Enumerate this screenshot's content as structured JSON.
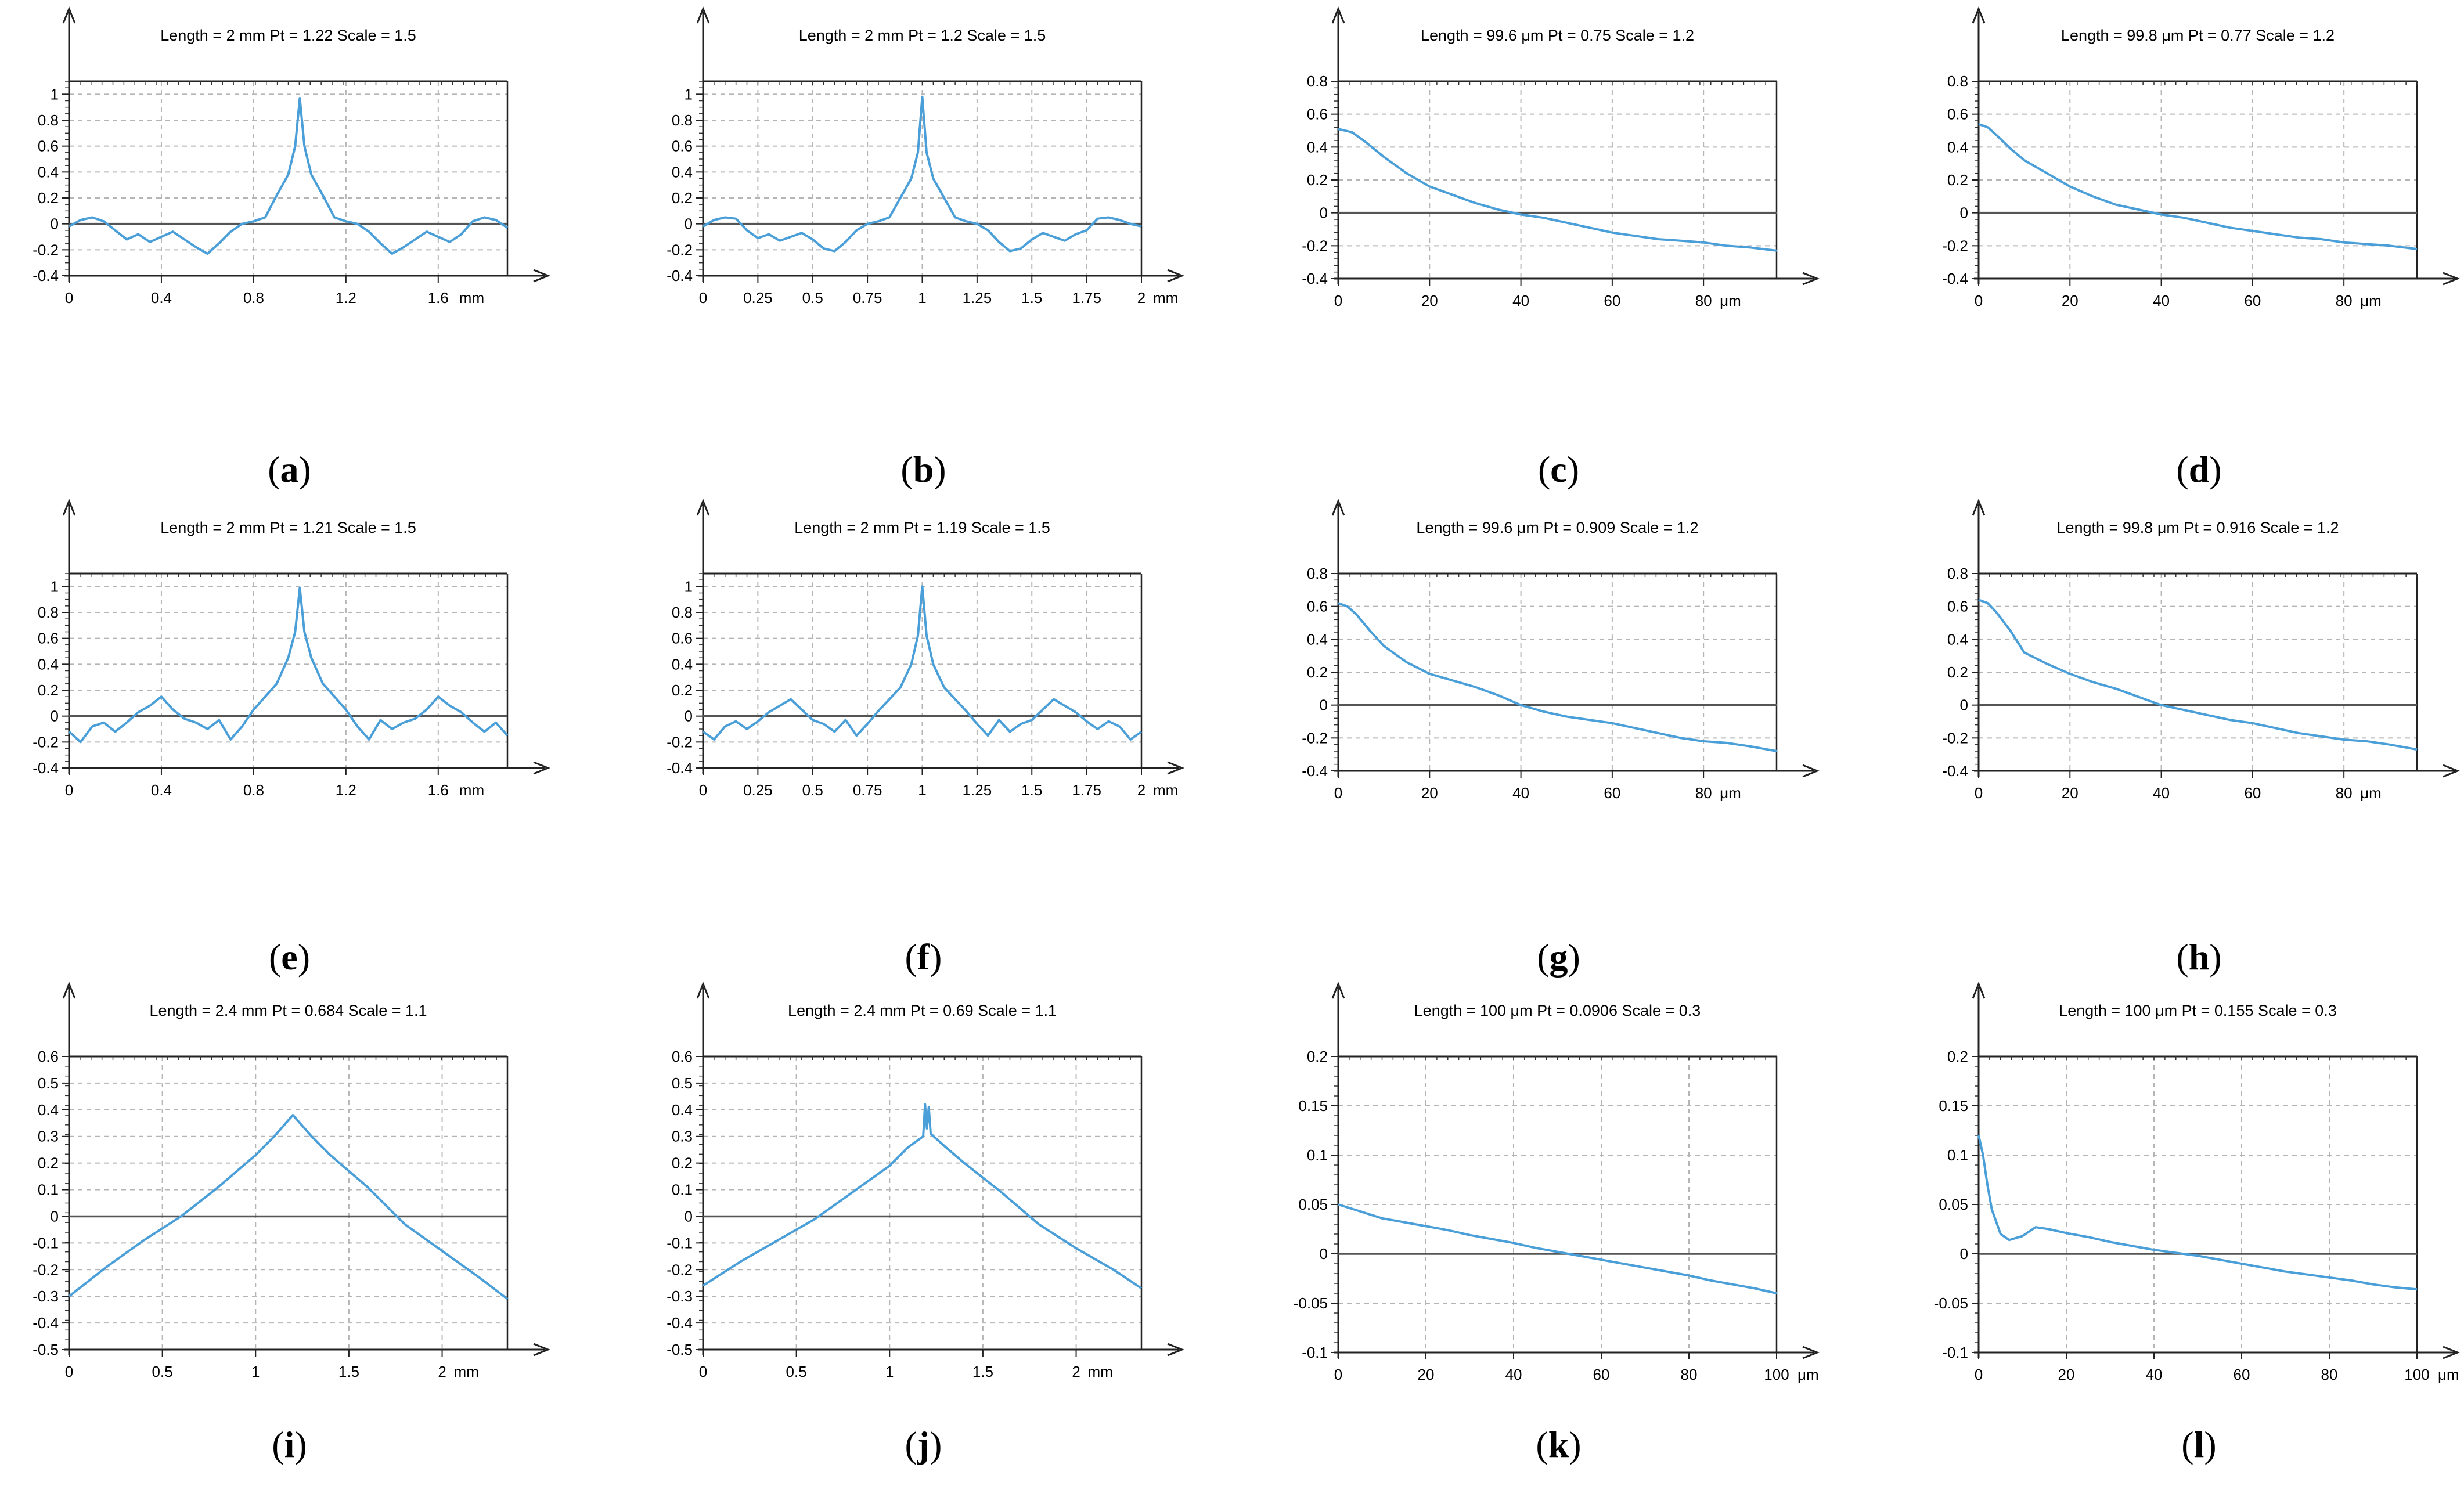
{
  "figure": {
    "panel_count": 12
  },
  "chart_data": [
    {
      "caption": "a",
      "type": "line",
      "header": "Length = 2 mm  Pt = 1.22    Scale = 1.5",
      "shape": "peak",
      "unit": "mm",
      "xlim": [
        0,
        1.9
      ],
      "ylim": [
        -0.4,
        1.1
      ],
      "xticks": [
        0,
        0.4,
        0.8,
        1.2,
        1.6
      ],
      "yticks": [
        -0.4,
        -0.2,
        0,
        0.2,
        0.4,
        0.6,
        0.8,
        1
      ],
      "series": [
        {
          "name": "profile",
          "x": [
            0,
            0.05,
            0.1,
            0.15,
            0.2,
            0.25,
            0.3,
            0.35,
            0.4,
            0.45,
            0.5,
            0.55,
            0.6,
            0.65,
            0.7,
            0.75,
            0.8,
            0.85,
            0.9,
            0.95,
            0.98,
            1.0,
            1.02,
            1.05,
            1.1,
            1.15,
            1.2,
            1.25,
            1.3,
            1.35,
            1.4,
            1.45,
            1.5,
            1.55,
            1.6,
            1.65,
            1.7,
            1.75,
            1.8,
            1.85,
            1.9
          ],
          "y": [
            -0.02,
            0.03,
            0.05,
            0.02,
            -0.05,
            -0.12,
            -0.08,
            -0.14,
            -0.1,
            -0.06,
            -0.12,
            -0.18,
            -0.23,
            -0.15,
            -0.06,
            0.0,
            0.02,
            0.05,
            0.22,
            0.38,
            0.6,
            0.97,
            0.6,
            0.38,
            0.22,
            0.05,
            0.02,
            0.0,
            -0.06,
            -0.15,
            -0.23,
            -0.18,
            -0.12,
            -0.06,
            -0.1,
            -0.14,
            -0.08,
            0.02,
            0.05,
            0.03,
            -0.03
          ]
        }
      ]
    },
    {
      "caption": "b",
      "type": "line",
      "header": "Length = 2 mm  Pt = 1.2    Scale = 1.5",
      "shape": "peak",
      "unit": "mm",
      "xlim": [
        0,
        2.0
      ],
      "ylim": [
        -0.4,
        1.1
      ],
      "xticks": [
        0,
        0.25,
        0.5,
        0.75,
        1,
        1.25,
        1.5,
        1.75,
        2
      ],
      "yticks": [
        -0.4,
        -0.2,
        0,
        0.2,
        0.4,
        0.6,
        0.8,
        1
      ],
      "series": [
        {
          "name": "profile",
          "x": [
            0,
            0.05,
            0.1,
            0.15,
            0.2,
            0.25,
            0.3,
            0.35,
            0.4,
            0.45,
            0.5,
            0.55,
            0.6,
            0.65,
            0.7,
            0.75,
            0.8,
            0.85,
            0.9,
            0.95,
            0.98,
            1.0,
            1.02,
            1.05,
            1.1,
            1.15,
            1.2,
            1.25,
            1.3,
            1.35,
            1.4,
            1.45,
            1.5,
            1.55,
            1.6,
            1.65,
            1.7,
            1.75,
            1.8,
            1.85,
            1.9,
            1.95,
            2.0
          ],
          "y": [
            -0.02,
            0.03,
            0.05,
            0.04,
            -0.05,
            -0.11,
            -0.08,
            -0.13,
            -0.1,
            -0.07,
            -0.12,
            -0.19,
            -0.21,
            -0.14,
            -0.05,
            0.0,
            0.02,
            0.05,
            0.2,
            0.35,
            0.55,
            0.98,
            0.55,
            0.35,
            0.2,
            0.05,
            0.02,
            0.0,
            -0.05,
            -0.14,
            -0.21,
            -0.19,
            -0.12,
            -0.07,
            -0.1,
            -0.13,
            -0.08,
            -0.05,
            0.04,
            0.05,
            0.03,
            0.0,
            -0.02
          ]
        }
      ]
    },
    {
      "caption": "c",
      "type": "line",
      "header": "Length = 99.6 μm  Pt = 0.75    Scale = 1.2",
      "shape": "decay",
      "unit": "μm",
      "xlim": [
        0,
        96
      ],
      "ylim": [
        -0.4,
        0.8
      ],
      "xticks": [
        0,
        20,
        40,
        60,
        80
      ],
      "yticks": [
        -0.4,
        -0.2,
        0,
        0.2,
        0.4,
        0.6,
        0.8
      ],
      "series": [
        {
          "name": "profile",
          "x": [
            0,
            3,
            6,
            10,
            15,
            20,
            25,
            30,
            35,
            40,
            45,
            50,
            55,
            60,
            65,
            70,
            75,
            80,
            85,
            90,
            96
          ],
          "y": [
            0.51,
            0.49,
            0.43,
            0.34,
            0.24,
            0.16,
            0.11,
            0.06,
            0.02,
            -0.01,
            -0.03,
            -0.06,
            -0.09,
            -0.12,
            -0.14,
            -0.16,
            -0.17,
            -0.18,
            -0.2,
            -0.21,
            -0.23
          ]
        }
      ]
    },
    {
      "caption": "d",
      "type": "line",
      "header": "Length = 99.8 μm  Pt = 0.77    Scale = 1.2",
      "shape": "decay",
      "unit": "μm",
      "xlim": [
        0,
        96
      ],
      "ylim": [
        -0.4,
        0.8
      ],
      "xticks": [
        0,
        20,
        40,
        60,
        80
      ],
      "yticks": [
        -0.4,
        -0.2,
        0,
        0.2,
        0.4,
        0.6,
        0.8
      ],
      "series": [
        {
          "name": "profile",
          "x": [
            0,
            2,
            4,
            7,
            10,
            15,
            20,
            25,
            30,
            35,
            40,
            45,
            50,
            55,
            60,
            65,
            70,
            75,
            80,
            85,
            90,
            96
          ],
          "y": [
            0.54,
            0.52,
            0.47,
            0.39,
            0.32,
            0.24,
            0.16,
            0.1,
            0.05,
            0.02,
            -0.01,
            -0.03,
            -0.06,
            -0.09,
            -0.11,
            -0.13,
            -0.15,
            -0.16,
            -0.18,
            -0.19,
            -0.2,
            -0.22
          ]
        }
      ]
    },
    {
      "caption": "e",
      "type": "line",
      "header": "Length = 2 mm  Pt = 1.21    Scale = 1.5",
      "shape": "peak",
      "unit": "mm",
      "xlim": [
        0,
        1.9
      ],
      "ylim": [
        -0.4,
        1.1
      ],
      "xticks": [
        0,
        0.4,
        0.8,
        1.2,
        1.6
      ],
      "yticks": [
        -0.4,
        -0.2,
        0,
        0.2,
        0.4,
        0.6,
        0.8,
        1
      ],
      "series": [
        {
          "name": "profile",
          "x": [
            0,
            0.05,
            0.1,
            0.15,
            0.2,
            0.25,
            0.3,
            0.35,
            0.4,
            0.45,
            0.5,
            0.55,
            0.6,
            0.65,
            0.7,
            0.75,
            0.8,
            0.85,
            0.9,
            0.95,
            0.98,
            1.0,
            1.02,
            1.05,
            1.1,
            1.15,
            1.2,
            1.25,
            1.3,
            1.35,
            1.4,
            1.45,
            1.5,
            1.55,
            1.6,
            1.65,
            1.7,
            1.75,
            1.8,
            1.85,
            1.9
          ],
          "y": [
            -0.12,
            -0.2,
            -0.08,
            -0.05,
            -0.12,
            -0.05,
            0.03,
            0.08,
            0.15,
            0.05,
            -0.02,
            -0.05,
            -0.1,
            -0.03,
            -0.18,
            -0.08,
            0.05,
            0.15,
            0.25,
            0.45,
            0.65,
            0.99,
            0.65,
            0.45,
            0.25,
            0.15,
            0.05,
            -0.08,
            -0.18,
            -0.03,
            -0.1,
            -0.05,
            -0.02,
            0.05,
            0.15,
            0.08,
            0.03,
            -0.05,
            -0.12,
            -0.05,
            -0.15
          ]
        }
      ]
    },
    {
      "caption": "f",
      "type": "line",
      "header": "Length = 2 mm  Pt = 1.19    Scale = 1.5",
      "shape": "peak",
      "unit": "mm",
      "xlim": [
        0,
        2.0
      ],
      "ylim": [
        -0.4,
        1.1
      ],
      "xticks": [
        0,
        0.25,
        0.5,
        0.75,
        1,
        1.25,
        1.5,
        1.75,
        2
      ],
      "yticks": [
        -0.4,
        -0.2,
        0,
        0.2,
        0.4,
        0.6,
        0.8,
        1
      ],
      "series": [
        {
          "name": "profile",
          "x": [
            0,
            0.05,
            0.1,
            0.15,
            0.2,
            0.25,
            0.3,
            0.35,
            0.4,
            0.45,
            0.5,
            0.55,
            0.6,
            0.65,
            0.7,
            0.75,
            0.8,
            0.85,
            0.9,
            0.95,
            0.98,
            1.0,
            1.02,
            1.05,
            1.1,
            1.15,
            1.2,
            1.25,
            1.3,
            1.35,
            1.4,
            1.45,
            1.5,
            1.55,
            1.6,
            1.65,
            1.7,
            1.75,
            1.8,
            1.85,
            1.9,
            1.95,
            2.0
          ],
          "y": [
            -0.12,
            -0.18,
            -0.08,
            -0.04,
            -0.1,
            -0.04,
            0.03,
            0.08,
            0.13,
            0.05,
            -0.03,
            -0.06,
            -0.12,
            -0.03,
            -0.15,
            -0.06,
            0.04,
            0.13,
            0.22,
            0.4,
            0.62,
            1.0,
            0.62,
            0.4,
            0.22,
            0.13,
            0.04,
            -0.06,
            -0.15,
            -0.03,
            -0.12,
            -0.06,
            -0.03,
            0.05,
            0.13,
            0.08,
            0.03,
            -0.04,
            -0.1,
            -0.04,
            -0.08,
            -0.18,
            -0.12
          ]
        }
      ]
    },
    {
      "caption": "g",
      "type": "line",
      "header": "Length = 99.6 μm  Pt = 0.909    Scale = 1.2",
      "shape": "decay",
      "unit": "μm",
      "xlim": [
        0,
        96
      ],
      "ylim": [
        -0.4,
        0.8
      ],
      "xticks": [
        0,
        20,
        40,
        60,
        80
      ],
      "yticks": [
        -0.4,
        -0.2,
        0,
        0.2,
        0.4,
        0.6,
        0.8
      ],
      "series": [
        {
          "name": "profile",
          "x": [
            0,
            2,
            4,
            7,
            10,
            15,
            20,
            25,
            30,
            35,
            40,
            45,
            50,
            55,
            60,
            65,
            70,
            75,
            80,
            85,
            90,
            96
          ],
          "y": [
            0.62,
            0.6,
            0.55,
            0.45,
            0.36,
            0.26,
            0.19,
            0.15,
            0.11,
            0.06,
            0.0,
            -0.04,
            -0.07,
            -0.09,
            -0.11,
            -0.14,
            -0.17,
            -0.2,
            -0.22,
            -0.23,
            -0.25,
            -0.28
          ]
        }
      ]
    },
    {
      "caption": "h",
      "type": "line",
      "header": "Length = 99.8 μm  Pt = 0.916    Scale = 1.2",
      "shape": "decay",
      "unit": "μm",
      "xlim": [
        0,
        96
      ],
      "ylim": [
        -0.4,
        0.8
      ],
      "xticks": [
        0,
        20,
        40,
        60,
        80
      ],
      "yticks": [
        -0.4,
        -0.2,
        0,
        0.2,
        0.4,
        0.6,
        0.8
      ],
      "series": [
        {
          "name": "profile",
          "x": [
            0,
            2,
            4,
            7,
            10,
            15,
            20,
            25,
            30,
            35,
            40,
            45,
            50,
            55,
            60,
            65,
            70,
            75,
            80,
            85,
            90,
            96
          ],
          "y": [
            0.64,
            0.62,
            0.56,
            0.45,
            0.32,
            0.25,
            0.19,
            0.14,
            0.1,
            0.05,
            0.0,
            -0.03,
            -0.06,
            -0.09,
            -0.11,
            -0.14,
            -0.17,
            -0.19,
            -0.21,
            -0.22,
            -0.24,
            -0.27
          ]
        }
      ]
    },
    {
      "caption": "i",
      "type": "line",
      "header": "Length = 2.4 mm  Pt = 0.684    Scale = 1.1",
      "shape": "triangle",
      "unit": "mm",
      "xlim": [
        0,
        2.35
      ],
      "ylim": [
        -0.5,
        0.6
      ],
      "xticks": [
        0,
        0.5,
        1,
        1.5,
        2
      ],
      "yticks": [
        -0.5,
        -0.4,
        -0.3,
        -0.2,
        -0.1,
        0,
        0.1,
        0.2,
        0.3,
        0.4,
        0.5,
        0.6
      ],
      "series": [
        {
          "name": "profile",
          "x": [
            0,
            0.2,
            0.4,
            0.6,
            0.8,
            1.0,
            1.1,
            1.2,
            1.3,
            1.4,
            1.6,
            1.8,
            2.0,
            2.2,
            2.35
          ],
          "y": [
            -0.3,
            -0.19,
            -0.09,
            0.0,
            0.11,
            0.23,
            0.3,
            0.38,
            0.3,
            0.23,
            0.11,
            -0.03,
            -0.13,
            -0.23,
            -0.31
          ]
        }
      ]
    },
    {
      "caption": "j",
      "type": "line",
      "header": "Length = 2.4 mm  Pt = 0.69    Scale = 1.1",
      "shape": "triangle",
      "unit": "mm",
      "xlim": [
        0,
        2.35
      ],
      "ylim": [
        -0.5,
        0.6
      ],
      "xticks": [
        0,
        0.5,
        1,
        1.5,
        2
      ],
      "yticks": [
        -0.5,
        -0.4,
        -0.3,
        -0.2,
        -0.1,
        0,
        0.1,
        0.2,
        0.3,
        0.4,
        0.5,
        0.6
      ],
      "series": [
        {
          "name": "profile",
          "x": [
            0,
            0.2,
            0.4,
            0.6,
            0.8,
            1.0,
            1.1,
            1.18,
            1.19,
            1.2,
            1.21,
            1.22,
            1.3,
            1.4,
            1.6,
            1.8,
            2.0,
            2.2,
            2.35
          ],
          "y": [
            -0.26,
            -0.17,
            -0.09,
            -0.01,
            0.09,
            0.19,
            0.26,
            0.3,
            0.42,
            0.33,
            0.41,
            0.31,
            0.26,
            0.2,
            0.09,
            -0.03,
            -0.12,
            -0.2,
            -0.27
          ]
        }
      ]
    },
    {
      "caption": "k",
      "type": "line",
      "header": "Length = 100 μm  Pt = 0.0906    Scale = 0.3",
      "shape": "linear",
      "unit": "μm",
      "xlim": [
        0,
        100
      ],
      "ylim": [
        -0.1,
        0.2
      ],
      "xticks": [
        0,
        20,
        40,
        60,
        80,
        100
      ],
      "yticks": [
        -0.1,
        -0.05,
        0,
        0.05,
        0.1,
        0.15,
        0.2
      ],
      "series": [
        {
          "name": "profile",
          "x": [
            0,
            5,
            10,
            15,
            20,
            25,
            30,
            35,
            40,
            45,
            50,
            55,
            60,
            65,
            70,
            75,
            80,
            85,
            90,
            95,
            100
          ],
          "y": [
            0.05,
            0.043,
            0.036,
            0.032,
            0.028,
            0.024,
            0.019,
            0.015,
            0.011,
            0.006,
            0.002,
            -0.002,
            -0.006,
            -0.01,
            -0.014,
            -0.018,
            -0.022,
            -0.027,
            -0.031,
            -0.035,
            -0.04
          ]
        }
      ]
    },
    {
      "caption": "l",
      "type": "line",
      "header": "Length = 100 μm  Pt = 0.155    Scale = 0.3",
      "shape": "linear",
      "unit": "μm",
      "xlim": [
        0,
        100
      ],
      "ylim": [
        -0.1,
        0.2
      ],
      "xticks": [
        0,
        20,
        40,
        60,
        80,
        100
      ],
      "yticks": [
        -0.1,
        -0.05,
        0,
        0.05,
        0.1,
        0.15,
        0.2
      ],
      "series": [
        {
          "name": "profile",
          "x": [
            0,
            1,
            2,
            3,
            5,
            7,
            10,
            13,
            16,
            20,
            25,
            30,
            35,
            40,
            45,
            50,
            55,
            60,
            65,
            70,
            75,
            80,
            85,
            90,
            95,
            100
          ],
          "y": [
            0.12,
            0.1,
            0.07,
            0.045,
            0.02,
            0.014,
            0.018,
            0.027,
            0.025,
            0.021,
            0.017,
            0.012,
            0.008,
            0.004,
            0.001,
            -0.002,
            -0.006,
            -0.01,
            -0.014,
            -0.018,
            -0.021,
            -0.024,
            -0.027,
            -0.031,
            -0.034,
            -0.036
          ]
        }
      ]
    }
  ]
}
